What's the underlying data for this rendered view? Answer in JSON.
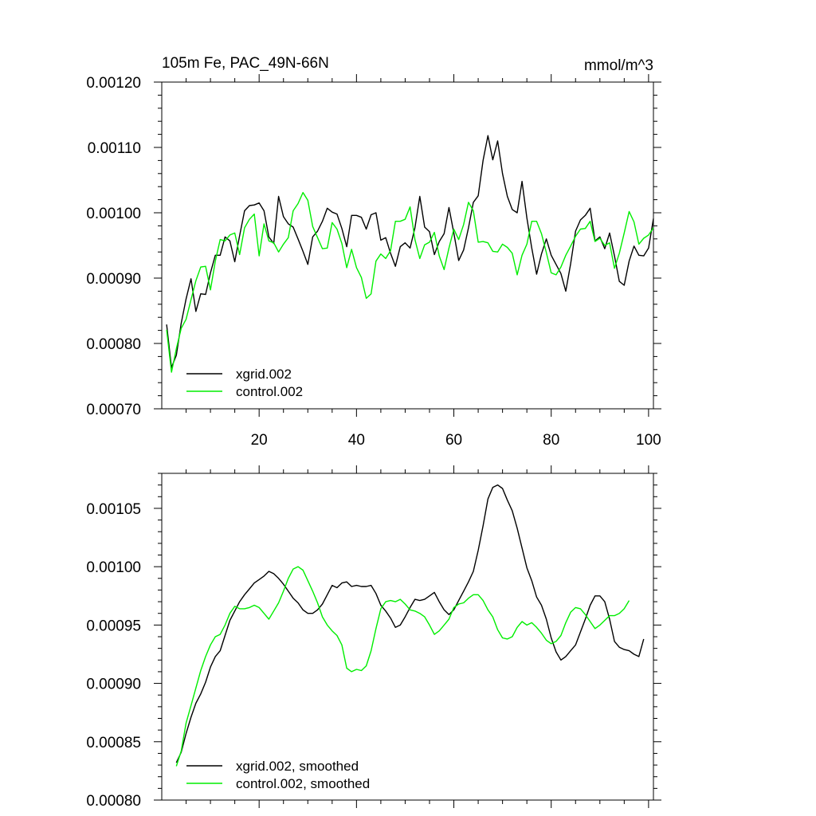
{
  "colors": {
    "series_a": "#000000",
    "series_b": "#00ee00",
    "background": "#ffffff"
  },
  "chart_data": [
    {
      "type": "line",
      "title_left": "105m Fe, PAC_49N-66N",
      "title_right": "mmol/m^3",
      "xlim": [
        0,
        101
      ],
      "ylim": [
        0.0007,
        0.0012
      ],
      "xticks": [
        20,
        40,
        60,
        80,
        100
      ],
      "xtick_labels": [
        "20",
        "40",
        "60",
        "80",
        "100"
      ],
      "yticks": [
        0.0007,
        0.0008,
        0.0009,
        0.001,
        0.0011,
        0.0012
      ],
      "ytick_labels": [
        "0.00070",
        "0.00080",
        "0.00090",
        "0.00100",
        "0.00110",
        "0.00120"
      ],
      "legend_position": "bottom-left",
      "series": [
        {
          "name": "xgrid.002",
          "color": "#000000",
          "x_start": 1,
          "values": [
            0.000829,
            0.000763,
            0.000782,
            0.000831,
            0.000868,
            0.000899,
            0.000849,
            0.000876,
            0.000875,
            0.000908,
            0.000935,
            0.000935,
            0.000963,
            0.000957,
            0.000925,
            0.000965,
            0.001003,
            0.001011,
            0.001012,
            0.001015,
            0.001003,
            0.000963,
            0.000953,
            0.001025,
            0.000994,
            0.000983,
            0.000978,
            0.00096,
            0.000941,
            0.000921,
            0.000963,
            0.000972,
            0.000987,
            0.001007,
            0.001001,
            0.000998,
            0.000976,
            0.000948,
            0.000996,
            0.000996,
            0.000993,
            0.000975,
            0.000997,
            0.001,
            0.000958,
            0.000962,
            0.000938,
            0.000918,
            0.000948,
            0.000954,
            0.000946,
            0.000977,
            0.001025,
            0.000978,
            0.000971,
            0.000936,
            0.000956,
            0.000968,
            0.001008,
            0.000969,
            0.000927,
            0.000943,
            0.000977,
            0.001016,
            0.001026,
            0.00108,
            0.001118,
            0.001081,
            0.00111,
            0.00106,
            0.001025,
            0.001005,
            0.001,
            0.001048,
            0.000992,
            0.000946,
            0.000906,
            0.000937,
            0.00096,
            0.000935,
            0.000921,
            0.000907,
            0.00088,
            0.000922,
            0.000972,
            0.000989,
            0.000996,
            0.001007,
            0.000957,
            0.000963,
            0.000945,
            0.000969,
            0.000934,
            0.000895,
            0.000889,
            0.000926,
            0.000949,
            0.000935,
            0.000934,
            0.000946,
            0.000991
          ]
        },
        {
          "name": "control.002",
          "color": "#00ee00",
          "x_start": 1,
          "values": [
            0.000821,
            0.000756,
            0.000792,
            0.000823,
            0.000837,
            0.000867,
            0.000896,
            0.000917,
            0.000918,
            0.000882,
            0.000926,
            0.000959,
            0.000957,
            0.000966,
            0.000969,
            0.000936,
            0.000977,
            0.00099,
            0.000998,
            0.000934,
            0.000983,
            0.000957,
            0.000954,
            0.00094,
            0.000952,
            0.000962,
            0.001003,
            0.001014,
            0.001031,
            0.001019,
            0.000979,
            0.000962,
            0.000945,
            0.000946,
            0.000985,
            0.000975,
            0.000953,
            0.000916,
            0.000944,
            0.000916,
            0.000901,
            0.000869,
            0.000876,
            0.000926,
            0.000937,
            0.00093,
            0.000942,
            0.000987,
            0.000987,
            0.00099,
            0.001009,
            0.000959,
            0.00093,
            0.000951,
            0.000955,
            0.00097,
            0.000934,
            0.000913,
            0.000946,
            0.000975,
            0.000959,
            0.000982,
            0.001016,
            0.001003,
            0.000955,
            0.000956,
            0.000954,
            0.000941,
            0.00094,
            0.000952,
            0.000947,
            0.000938,
            0.000905,
            0.000935,
            0.000952,
            0.000987,
            0.000987,
            0.000968,
            0.000939,
            0.000908,
            0.000905,
            0.000917,
            0.000935,
            0.000949,
            0.000964,
            0.000975,
            0.000976,
            0.000987,
            0.000956,
            0.000961,
            0.00095,
            0.000954,
            0.000915,
            0.000938,
            0.000969,
            0.001002,
            0.000986,
            0.000952,
            0.000961,
            0.000966,
            0.000977
          ]
        }
      ]
    },
    {
      "type": "line",
      "xlim": [
        0,
        101
      ],
      "ylim": [
        0.0008,
        0.00108
      ],
      "xticks": [
        20,
        40,
        60,
        80,
        100
      ],
      "yticks": [
        0.0008,
        0.00085,
        0.0009,
        0.00095,
        0.001,
        0.00105
      ],
      "ytick_labels": [
        "0.00080",
        "0.00085",
        "0.00090",
        "0.00095",
        "0.00100",
        "0.00105"
      ],
      "legend_position": "bottom-left",
      "series": [
        {
          "name": "xgrid.002, smoothed",
          "color": "#000000",
          "x_start": 3,
          "values": [
            0.000832,
            0.000841,
            0.000857,
            0.000871,
            0.000883,
            0.000891,
            0.000901,
            0.000914,
            0.000923,
            0.000928,
            0.000941,
            0.000954,
            0.000962,
            0.00097,
            0.000976,
            0.000981,
            0.000986,
            0.000989,
            0.000992,
            0.000996,
            0.000994,
            0.00099,
            0.000985,
            0.000979,
            0.000973,
            0.000969,
            0.000963,
            0.00096,
            0.00096,
            0.000963,
            0.000968,
            0.000976,
            0.000984,
            0.000982,
            0.000986,
            0.000987,
            0.000983,
            0.000984,
            0.000983,
            0.000983,
            0.000984,
            0.000977,
            0.000967,
            0.000962,
            0.000956,
            0.000948,
            0.00095,
            0.000957,
            0.000965,
            0.000972,
            0.000971,
            0.000972,
            0.000975,
            0.000978,
            0.00097,
            0.000963,
            0.000959,
            0.000963,
            0.000971,
            0.000979,
            0.000987,
            0.000996,
            0.001014,
            0.001035,
            0.001058,
            0.001068,
            0.00107,
            0.001067,
            0.001057,
            0.001048,
            0.001033,
            0.001016,
            0.000999,
            0.000988,
            0.000974,
            0.000967,
            0.000955,
            0.000939,
            0.000927,
            0.00092,
            0.000923,
            0.000928,
            0.000933,
            0.000944,
            0.000955,
            0.000967,
            0.000975,
            0.000975,
            0.00097,
            0.000955,
            0.000936,
            0.000931,
            0.000929,
            0.000928,
            0.000925,
            0.000923,
            0.000938
          ]
        },
        {
          "name": "control.002, smoothed",
          "color": "#00ee00",
          "x_start": 3,
          "values": [
            0.000829,
            0.000842,
            0.000866,
            0.000881,
            0.000896,
            0.000911,
            0.000923,
            0.000933,
            0.00094,
            0.000942,
            0.00095,
            0.00096,
            0.000966,
            0.000964,
            0.000964,
            0.000965,
            0.000967,
            0.000965,
            0.00096,
            0.000955,
            0.000962,
            0.000969,
            0.000979,
            0.00099,
            0.000998,
            0.001,
            0.000997,
            0.000988,
            0.000979,
            0.000969,
            0.000957,
            0.00095,
            0.000945,
            0.000941,
            0.000933,
            0.000913,
            0.00091,
            0.000912,
            0.000911,
            0.000915,
            0.000928,
            0.000947,
            0.000964,
            0.00097,
            0.000971,
            0.00097,
            0.000972,
            0.000968,
            0.000963,
            0.000962,
            0.00096,
            0.000957,
            0.00095,
            0.000942,
            0.000945,
            0.00095,
            0.000955,
            0.000965,
            0.000968,
            0.000969,
            0.000973,
            0.000976,
            0.000976,
            0.000971,
            0.000963,
            0.000957,
            0.000946,
            0.000939,
            0.000938,
            0.00094,
            0.000948,
            0.000953,
            0.00095,
            0.000952,
            0.000948,
            0.000943,
            0.000937,
            0.000934,
            0.000936,
            0.000941,
            0.000952,
            0.000961,
            0.000965,
            0.000964,
            0.000959,
            0.000953,
            0.000947,
            0.00095,
            0.000954,
            0.000958,
            0.000958,
            0.00096,
            0.000964,
            0.000971
          ]
        }
      ]
    }
  ]
}
